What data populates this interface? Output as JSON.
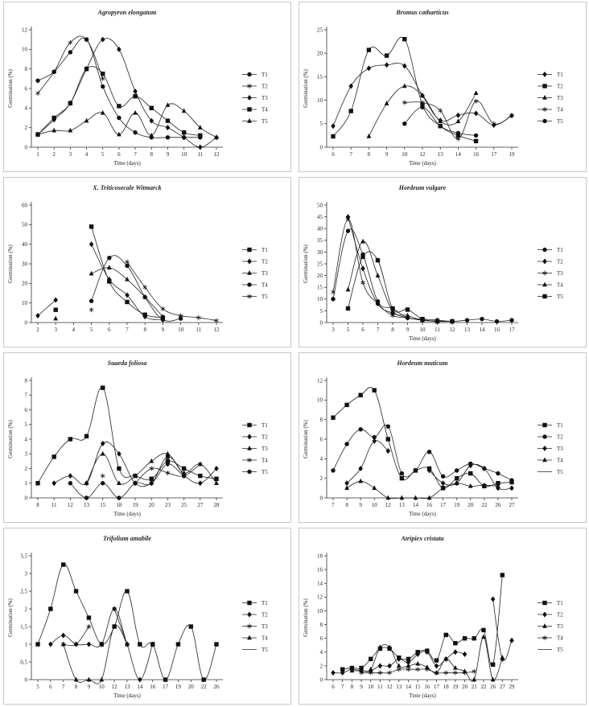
{
  "chart_data": [
    {
      "type": "line",
      "title": "Agropyron elongatum",
      "xlabel": "Time (days)",
      "ylabel": "Germination (%)",
      "x": [
        "1",
        "2",
        "3",
        "4",
        "5",
        "6",
        "7",
        "8",
        "9",
        "10",
        "11",
        "12"
      ],
      "ylim": [
        0,
        12
      ],
      "yticks": [
        0,
        2,
        4,
        6,
        8,
        10,
        12
      ],
      "series": [
        {
          "name": "T1",
          "marker": "circle",
          "values": [
            6.8,
            7.7,
            9.7,
            11,
            6.2,
            3,
            1.5,
            1,
            1,
            1,
            1,
            null
          ]
        },
        {
          "name": "T2",
          "marker": "star",
          "values": [
            5.5,
            7.7,
            10.7,
            11,
            7,
            null,
            null,
            null,
            null,
            null,
            null,
            null
          ]
        },
        {
          "name": "T3",
          "marker": "diamond",
          "values": [
            1.3,
            2.8,
            4.5,
            8,
            11,
            10,
            5.7,
            2.7,
            2,
            1,
            0,
            1
          ]
        },
        {
          "name": "T4",
          "marker": "square",
          "values": [
            1.3,
            3,
            4.5,
            8,
            7.5,
            4.2,
            5.2,
            4,
            2.7,
            1.5,
            1.2,
            null
          ]
        },
        {
          "name": "T5",
          "marker": "triangle",
          "values": [
            1.3,
            1.7,
            1.7,
            2.7,
            3.5,
            1.3,
            3.5,
            1.2,
            4.3,
            3.7,
            2,
            1
          ]
        }
      ]
    },
    {
      "type": "line",
      "title": "Bromus catharticus",
      "xlabel": "Time (days)",
      "ylabel": "Germination (%)",
      "x": [
        "6",
        "7",
        "8",
        "9",
        "10",
        "12",
        "13",
        "14",
        "16",
        "17",
        "19"
      ],
      "ylim": [
        0,
        25
      ],
      "yticks": [
        0,
        5,
        10,
        15,
        20,
        25
      ],
      "series": [
        {
          "name": "T1",
          "marker": "diamond",
          "values": [
            4.5,
            13,
            16.8,
            17.5,
            17.3,
            11,
            5.7,
            6.8,
            7.2,
            4.7,
            6.7
          ]
        },
        {
          "name": "T2",
          "marker": "square",
          "values": [
            2.3,
            7.7,
            20.7,
            19.5,
            23,
            9,
            4.5,
            2.5,
            1.3,
            null,
            null
          ]
        },
        {
          "name": "T3",
          "marker": "triangle",
          "values": [
            null,
            null,
            2.3,
            9.3,
            13,
            11,
            5.5,
            5.5,
            11.5,
            null,
            null
          ]
        },
        {
          "name": "T4",
          "marker": "star",
          "values": [
            null,
            null,
            null,
            null,
            9.5,
            9.5,
            7.8,
            1.8,
            9.8,
            5,
            6.8
          ]
        },
        {
          "name": "T5",
          "marker": "circle",
          "values": [
            null,
            null,
            null,
            null,
            5,
            8.5,
            4.5,
            3,
            2.5,
            null,
            null
          ]
        }
      ]
    },
    {
      "type": "line",
      "title": "X. Triticosecale Witmarck",
      "xlabel": "",
      "ylabel": "Germination (%)",
      "x": [
        "2",
        "3",
        "4",
        "5",
        "6",
        "7",
        "8",
        "9",
        "10",
        "11",
        "12"
      ],
      "ylim": [
        0,
        60
      ],
      "yticks": [
        0,
        10,
        20,
        30,
        40,
        50,
        60
      ],
      "series": [
        {
          "name": "T1",
          "marker": "square",
          "values": [
            null,
            6.5,
            null,
            49,
            21,
            10.5,
            4,
            2.5,
            null,
            null,
            null
          ]
        },
        {
          "name": "T2",
          "marker": "diamond",
          "values": [
            3.5,
            11.5,
            null,
            40,
            22,
            14,
            3,
            1.5,
            null,
            null,
            null
          ]
        },
        {
          "name": "T3",
          "marker": "triangle",
          "values": [
            null,
            2,
            null,
            25,
            28,
            22,
            13,
            3,
            null,
            null,
            null
          ]
        },
        {
          "name": "T4",
          "marker": "circle",
          "values": [
            null,
            null,
            null,
            11,
            33,
            29,
            13,
            1.5,
            2,
            null,
            null
          ]
        },
        {
          "name": "T5",
          "marker": "star",
          "values": [
            null,
            null,
            null,
            6.5,
            null,
            31,
            18,
            7,
            3.5,
            2.5,
            1
          ]
        }
      ]
    },
    {
      "type": "line",
      "title": "Hordeum vulgare",
      "xlabel": "Time (days)",
      "ylabel": "Germination (%)",
      "x": [
        "3",
        "5",
        "6",
        "7",
        "8",
        "9",
        "10",
        "11",
        "12",
        "13",
        "14",
        "16",
        "17"
      ],
      "ylim": [
        0,
        50
      ],
      "yticks": [
        0,
        5,
        10,
        15,
        20,
        25,
        30,
        35,
        40,
        45,
        50
      ],
      "series": [
        {
          "name": "T1",
          "marker": "circle",
          "values": [
            10,
            39,
            29,
            9,
            6,
            2,
            1.5,
            1,
            0.5,
            1,
            1.5,
            0.5,
            1
          ]
        },
        {
          "name": "T2",
          "marker": "diamond",
          "values": [
            null,
            45,
            23,
            8,
            4,
            2,
            1,
            0.5,
            0.5,
            null,
            null,
            null,
            null
          ]
        },
        {
          "name": "T3",
          "marker": "star",
          "values": [
            13,
            44,
            17,
            8,
            3,
            2,
            1,
            0.5,
            0.5,
            null,
            null,
            null,
            null
          ]
        },
        {
          "name": "T4",
          "marker": "triangle",
          "values": [
            null,
            14,
            34.5,
            20,
            5,
            3,
            1,
            0.5,
            0.5,
            null,
            null,
            null,
            null
          ]
        },
        {
          "name": "T5",
          "marker": "square",
          "values": [
            null,
            6,
            28,
            26.5,
            6,
            5.5,
            1.5,
            0.5,
            0.5,
            null,
            null,
            null,
            null
          ]
        }
      ]
    },
    {
      "type": "line",
      "title": "Suaeda foliosa",
      "xlabel": "Time (days)",
      "ylabel": "Germination (%)",
      "x": [
        "8",
        "11",
        "12",
        "13",
        "15",
        "18",
        "19",
        "20",
        "23",
        "25",
        "27",
        "28"
      ],
      "ylim": [
        0,
        8
      ],
      "yticks": [
        0,
        1,
        2,
        3,
        4,
        5,
        6,
        7,
        8
      ],
      "series": [
        {
          "name": "T1",
          "marker": "square",
          "values": [
            1,
            2.8,
            4,
            4.2,
            7.5,
            2,
            1.5,
            1.3,
            2.5,
            2,
            1.5,
            1.3
          ]
        },
        {
          "name": "T2",
          "marker": "diamond",
          "values": [
            null,
            1,
            1.5,
            1,
            3.7,
            3,
            1,
            1,
            2.3,
            1.5,
            1,
            2
          ]
        },
        {
          "name": "T3",
          "marker": "triangle",
          "values": [
            null,
            null,
            null,
            1,
            3,
            1,
            1.5,
            2.5,
            3,
            1.7,
            2.3,
            1
          ]
        },
        {
          "name": "T4",
          "marker": "star",
          "values": [
            null,
            null,
            null,
            null,
            1.5,
            null,
            1,
            2,
            1.7,
            1.5,
            2.3,
            null
          ]
        },
        {
          "name": "T5",
          "marker": "circle",
          "values": [
            null,
            null,
            1,
            0,
            1,
            0,
            1,
            1,
            2.8,
            1.5,
            null,
            null
          ]
        }
      ]
    },
    {
      "type": "line",
      "title": "Hordeum muticum",
      "xlabel": "Time (days)",
      "ylabel": "Germination (%)",
      "x": [
        "7",
        "8",
        "9",
        "10",
        "12",
        "13",
        "14",
        "16",
        "17",
        "19",
        "20",
        "22",
        "26",
        "27"
      ],
      "ylim": [
        0,
        12
      ],
      "yticks": [
        0,
        2,
        4,
        6,
        8,
        10,
        12
      ],
      "series": [
        {
          "name": "T1",
          "marker": "square",
          "values": [
            8.2,
            9.5,
            10.5,
            11,
            6,
            2,
            2.8,
            3,
            1,
            2,
            2.5,
            1.2,
            1.5,
            1.6
          ]
        },
        {
          "name": "T2",
          "marker": "circle",
          "values": [
            2.8,
            5.5,
            7,
            6.2,
            7.3,
            2.5,
            2.8,
            4.7,
            2.2,
            2.8,
            3.5,
            3,
            2.5,
            1.8
          ]
        },
        {
          "name": "T3",
          "marker": "diamond",
          "values": [
            null,
            1.5,
            3,
            5.8,
            4.8,
            null,
            null,
            2.8,
            1.5,
            1.5,
            3.3,
            3,
            1,
            1
          ]
        },
        {
          "name": "T4",
          "marker": "triangle",
          "values": [
            null,
            1,
            1.7,
            1,
            0,
            0,
            0,
            0,
            1,
            1.5,
            1.2,
            1.3,
            1.2,
            null
          ]
        },
        {
          "name": "T5",
          "marker": "none",
          "values": [
            null,
            null,
            null,
            null,
            null,
            null,
            null,
            null,
            null,
            null,
            null,
            null,
            null,
            null
          ]
        }
      ]
    },
    {
      "type": "line",
      "title": "Trifolium amabile",
      "xlabel": "Time (days)",
      "ylabel": "Germination (%)",
      "x": [
        "5",
        "6",
        "7",
        "8",
        "9",
        "10",
        "12",
        "13",
        "14",
        "16",
        "17",
        "19",
        "20",
        "22",
        "26"
      ],
      "ylim": [
        0,
        3.5
      ],
      "yticks": [
        0,
        0.5,
        1,
        1.5,
        2,
        2.5,
        3,
        3.5
      ],
      "yticklabels": [
        "0",
        "0,5",
        "1",
        "1,5",
        "2",
        "2,5",
        "3",
        "3,5"
      ],
      "series": [
        {
          "name": "T1",
          "marker": "square",
          "values": [
            1,
            2,
            3.25,
            2.5,
            1.75,
            1,
            1.5,
            2.5,
            1,
            1,
            0,
            1,
            1.5,
            0,
            1
          ]
        },
        {
          "name": "T2",
          "marker": "diamond",
          "values": [
            null,
            1,
            1.25,
            1,
            1,
            1,
            2,
            1,
            0,
            1,
            null,
            null,
            null,
            null,
            null
          ]
        },
        {
          "name": "T3",
          "marker": "star",
          "values": [
            null,
            null,
            1,
            1,
            1.5,
            null,
            2,
            1,
            null,
            null,
            null,
            null,
            null,
            null,
            null
          ]
        },
        {
          "name": "T4",
          "marker": "triangle",
          "values": [
            null,
            null,
            1,
            0,
            0,
            0,
            1.5,
            1,
            null,
            null,
            null,
            null,
            null,
            null,
            null
          ]
        },
        {
          "name": "T5",
          "marker": "none",
          "values": [
            null,
            null,
            null,
            null,
            null,
            null,
            null,
            null,
            null,
            null,
            null,
            null,
            null,
            null,
            null
          ]
        }
      ]
    },
    {
      "type": "line",
      "title": "Atripiex cristata",
      "xlabel": "Time (days)",
      "ylabel": "Germination (%)",
      "x": [
        "6",
        "7",
        "8",
        "9",
        "10",
        "11",
        "12",
        "13",
        "14",
        "15",
        "16",
        "17",
        "18",
        "19",
        "20",
        "21",
        "22",
        "26",
        "27",
        "29"
      ],
      "ylim": [
        0,
        18
      ],
      "yticks": [
        0,
        2,
        4,
        6,
        8,
        10,
        12,
        14,
        16,
        18
      ],
      "series": [
        {
          "name": "T1",
          "marker": "square",
          "values": [
            null,
            1.5,
            1.7,
            1.7,
            3,
            4.5,
            4.5,
            3.2,
            3,
            4,
            4.2,
            2.8,
            6.5,
            5.3,
            6,
            6,
            7.2,
            2.2,
            15.2,
            null
          ]
        },
        {
          "name": "T2",
          "marker": "diamond",
          "values": [
            1,
            1,
            1.5,
            1.3,
            1.3,
            2,
            2,
            3,
            2.5,
            3.7,
            4,
            2,
            3,
            4,
            3.7,
            null,
            null,
            11.7,
            3,
            5.7
          ]
        },
        {
          "name": "T3",
          "marker": "triangle",
          "values": [
            null,
            null,
            1.3,
            1.3,
            1.5,
            4.7,
            4.7,
            2,
            2,
            2.3,
            1.8,
            1,
            3,
            1.7,
            1.2,
            0,
            6.2,
            0,
            3.2,
            null
          ]
        },
        {
          "name": "T4",
          "marker": "star",
          "values": [
            null,
            null,
            null,
            1,
            1,
            1,
            1,
            1.5,
            1.5,
            1.5,
            1.5,
            1,
            1,
            1,
            1,
            1.2,
            null,
            null,
            null,
            null
          ]
        },
        {
          "name": "T5",
          "marker": "none",
          "values": [
            null,
            null,
            null,
            null,
            null,
            null,
            null,
            null,
            null,
            null,
            null,
            null,
            null,
            null,
            null,
            null,
            null,
            null,
            null,
            null
          ]
        }
      ]
    }
  ]
}
